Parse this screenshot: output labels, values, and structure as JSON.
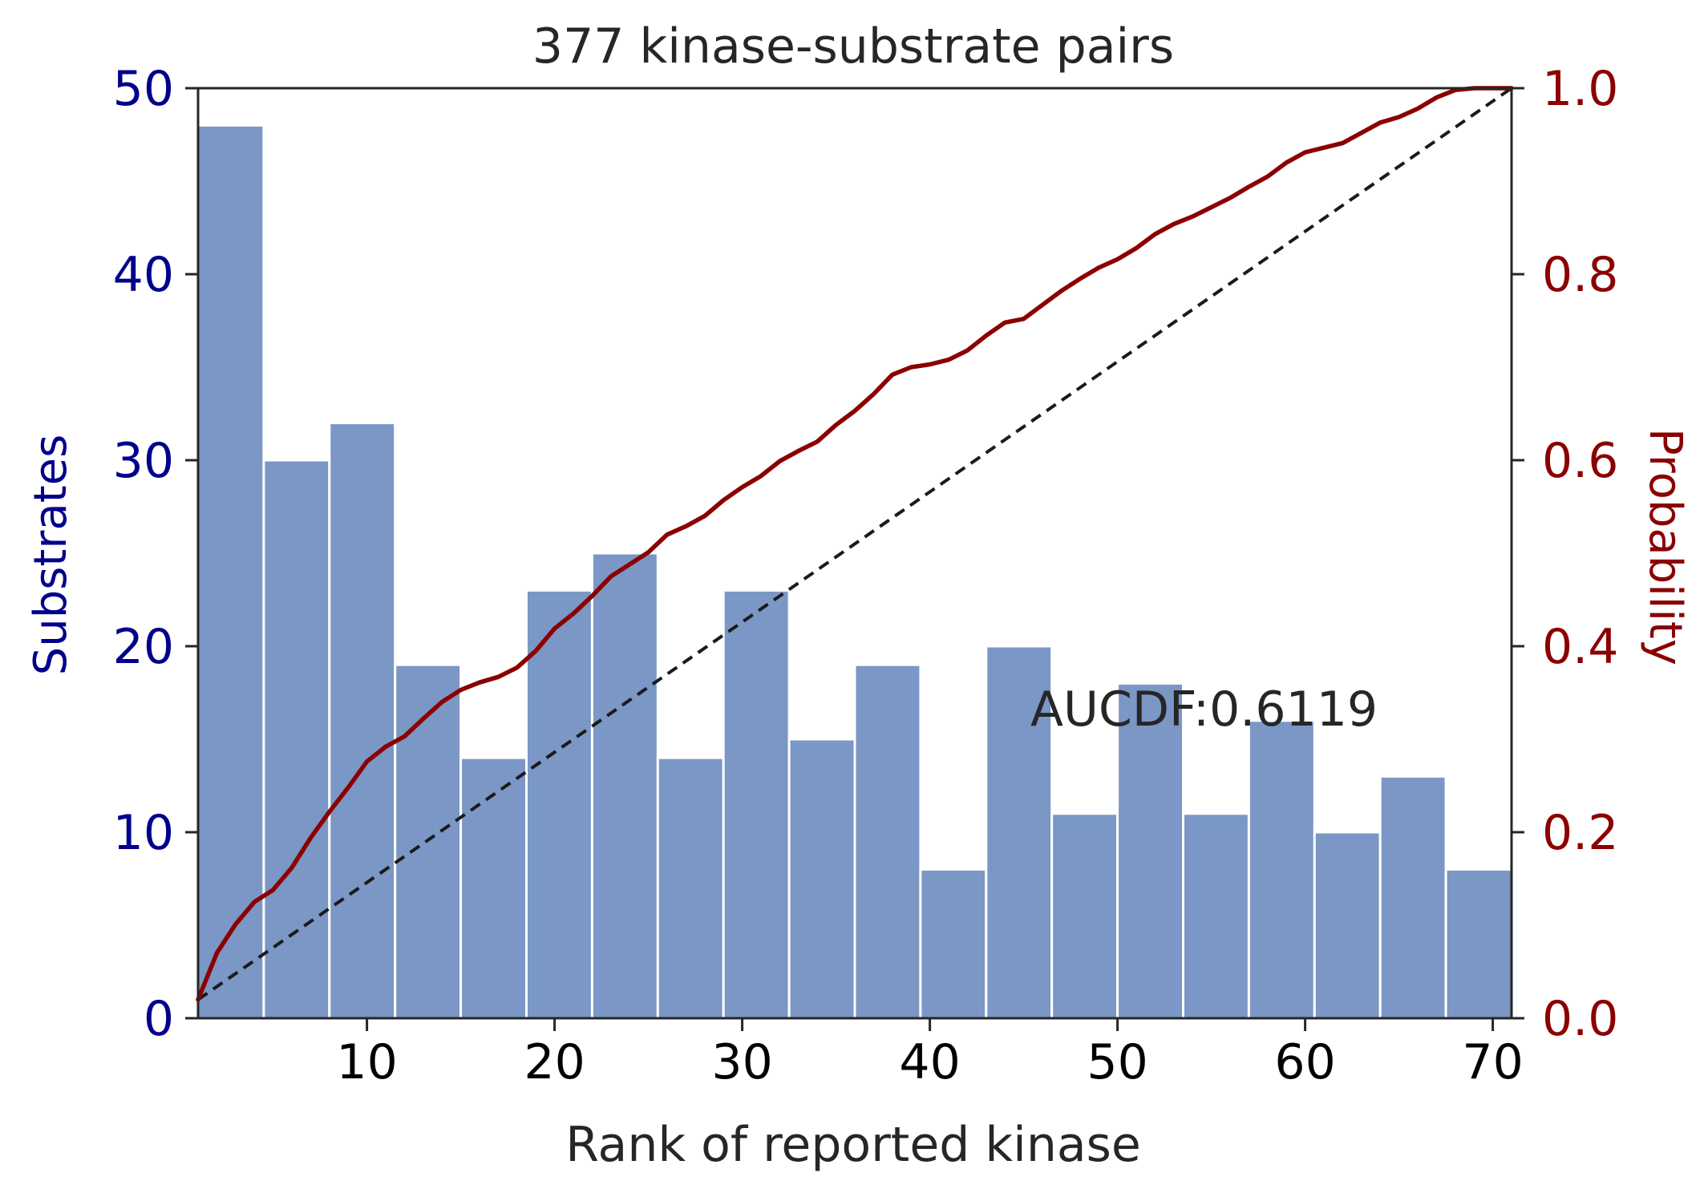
{
  "colors": {
    "bar": "#7a97c5",
    "bar_edge": "#ffffff",
    "cdf_line": "#8b0000",
    "diagonal": "#1a1a1a",
    "left_axis": "#00008b",
    "right_axis": "#8b0000",
    "text": "#262626",
    "x_ticks": "#000000",
    "spine": "#262626"
  },
  "chart_data": {
    "type": "bar",
    "title": "377 kinase-substrate pairs",
    "xlabel": "Rank of reported kinase",
    "ylabel": "Substrates",
    "y2label": "Probability",
    "annotation": "AUCDF:0.6119",
    "xlim": [
      1,
      71
    ],
    "ylim": [
      0,
      50
    ],
    "y2lim": [
      0,
      1.0
    ],
    "x_ticks": [
      10,
      20,
      30,
      40,
      50,
      60,
      70
    ],
    "y_ticks": [
      0,
      10,
      20,
      30,
      40,
      50
    ],
    "y2_ticks": [
      "0.0",
      "0.2",
      "0.4",
      "0.6",
      "0.8",
      "1.0"
    ],
    "histogram": {
      "bin_edges": [
        1,
        4.5,
        8,
        11.5,
        15,
        18.5,
        22,
        25.5,
        29,
        32.5,
        36,
        39.5,
        43,
        46.5,
        50,
        53.5,
        57,
        60.5,
        64,
        67.5,
        71
      ],
      "values": [
        48,
        30,
        32,
        19,
        14,
        23,
        25,
        14,
        23,
        15,
        19,
        8,
        20,
        11,
        18,
        11,
        16,
        10,
        13,
        8
      ]
    },
    "cdf_series": {
      "name": "",
      "x": [
        1,
        2,
        3,
        4,
        5,
        6,
        7,
        8,
        9,
        10,
        11,
        12,
        13,
        14,
        15,
        16,
        17,
        18,
        19,
        20,
        21,
        22,
        23,
        24,
        25,
        26,
        27,
        28,
        29,
        30,
        31,
        32,
        33,
        34,
        35,
        36,
        37,
        38,
        39,
        40,
        41,
        42,
        43,
        44,
        45,
        46,
        47,
        48,
        49,
        50,
        51,
        52,
        53,
        54,
        55,
        56,
        57,
        58,
        59,
        60,
        61,
        62,
        63,
        64,
        65,
        66,
        67,
        68,
        69,
        70,
        71
      ],
      "y": [
        0.02,
        0.07,
        0.101,
        0.125,
        0.138,
        0.162,
        0.194,
        0.222,
        0.248,
        0.276,
        0.292,
        0.303,
        0.322,
        0.34,
        0.353,
        0.361,
        0.367,
        0.377,
        0.395,
        0.419,
        0.435,
        0.454,
        0.475,
        0.488,
        0.501,
        0.52,
        0.529,
        0.54,
        0.557,
        0.571,
        0.583,
        0.599,
        0.61,
        0.62,
        0.638,
        0.653,
        0.671,
        0.692,
        0.7,
        0.703,
        0.708,
        0.718,
        0.734,
        0.748,
        0.752,
        0.767,
        0.782,
        0.795,
        0.807,
        0.816,
        0.828,
        0.843,
        0.854,
        0.862,
        0.872,
        0.882,
        0.894,
        0.905,
        0.92,
        0.931,
        0.936,
        0.941,
        0.952,
        0.963,
        0.969,
        0.978,
        0.99,
        0.998,
        1.0,
        1.0,
        1.0
      ]
    },
    "reference_line": {
      "x": [
        1,
        71
      ],
      "y": [
        0.02,
        1.0
      ],
      "style": "dashed"
    },
    "grid": false
  }
}
